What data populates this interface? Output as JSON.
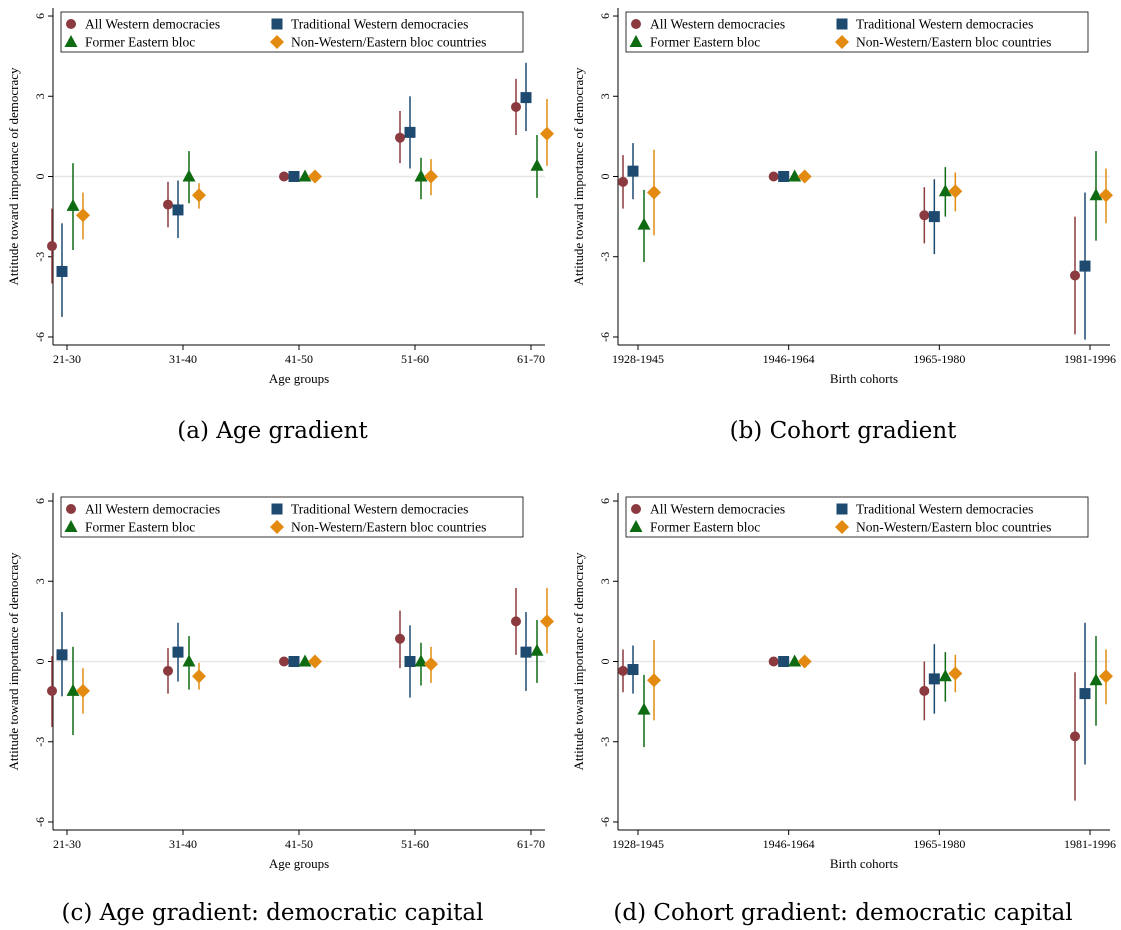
{
  "colors": {
    "all_western": "#8B3A3F",
    "traditional_western": "#1F4A70",
    "former_eastern": "#0F6B12",
    "non_western": "#E38A10",
    "zero_line": "#e6e6e6",
    "axis": "#000000"
  },
  "legend": {
    "all_western": "All Western democracies",
    "traditional_western": "Traditional Western democracies",
    "former_eastern": "Former Eastern bloc",
    "non_western": "Non-Western/Eastern bloc countries"
  },
  "captions": {
    "a": "(a) Age gradient",
    "b": "(b) Cohort gradient",
    "c": "(c) Age gradient: democratic capital",
    "d": "(d) Cohort gradient: democratic capital"
  },
  "chart_data": [
    {
      "type": "scatter",
      "ylabel": "Attitude toward importance of democracy",
      "xlabel": "Age groups",
      "categories": [
        "21-30",
        "31-40",
        "41-50",
        "51-60",
        "61-70"
      ],
      "yticks": [
        -6,
        -3,
        0,
        3,
        6
      ],
      "ylim": [
        -6.3,
        6.3
      ],
      "legend_position": "top-left",
      "series": [
        {
          "name": "All Western democracies",
          "marker": "circle",
          "values": [
            -2.6,
            -1.05,
            0,
            1.45,
            2.6
          ],
          "ci_low": [
            -4.0,
            -1.9,
            0,
            0.5,
            1.55
          ],
          "ci_high": [
            -1.2,
            -0.2,
            0,
            2.45,
            3.65
          ]
        },
        {
          "name": "Traditional Western democracies",
          "marker": "square",
          "values": [
            -3.55,
            -1.25,
            0,
            1.65,
            2.95
          ],
          "ci_low": [
            -5.25,
            -2.3,
            0,
            0.3,
            1.7
          ],
          "ci_high": [
            -1.75,
            -0.15,
            0,
            3.0,
            4.25
          ]
        },
        {
          "name": "Former Eastern bloc",
          "marker": "triangle",
          "values": [
            -1.1,
            0.0,
            0,
            0.0,
            0.4
          ],
          "ci_low": [
            -2.75,
            -1.0,
            0,
            -0.85,
            -0.8
          ],
          "ci_high": [
            0.5,
            0.95,
            0,
            0.7,
            1.55
          ]
        },
        {
          "name": "Non-Western/Eastern bloc countries",
          "marker": "diamond",
          "values": [
            -1.45,
            -0.7,
            0,
            0.0,
            1.6
          ],
          "ci_low": [
            -2.35,
            -1.2,
            0,
            -0.7,
            0.4
          ],
          "ci_high": [
            -0.6,
            -0.25,
            0,
            0.65,
            2.9
          ]
        }
      ]
    },
    {
      "type": "scatter",
      "ylabel": "Attitude toward importance of democracy",
      "xlabel": "Birth cohorts",
      "categories": [
        "1928-1945",
        "1946-1964",
        "1965-1980",
        "1981-1996"
      ],
      "yticks": [
        -6,
        -3,
        0,
        3,
        6
      ],
      "ylim": [
        -6.3,
        6.3
      ],
      "legend_position": "top-left",
      "series": [
        {
          "name": "All Western democracies",
          "marker": "circle",
          "values": [
            -0.2,
            0,
            -1.45,
            -3.7
          ],
          "ci_low": [
            -1.2,
            0,
            -2.5,
            -5.9
          ],
          "ci_high": [
            0.8,
            0,
            -0.4,
            -1.5
          ]
        },
        {
          "name": "Traditional Western democracies",
          "marker": "square",
          "values": [
            0.2,
            0,
            -1.5,
            -3.35
          ],
          "ci_low": [
            -0.85,
            0,
            -2.9,
            -6.1
          ],
          "ci_high": [
            1.25,
            0,
            -0.1,
            -0.6
          ]
        },
        {
          "name": "Former Eastern bloc",
          "marker": "triangle",
          "values": [
            -1.8,
            0,
            -0.55,
            -0.7
          ],
          "ci_low": [
            -3.2,
            0,
            -1.5,
            -2.4
          ],
          "ci_high": [
            -0.5,
            0,
            0.35,
            0.95
          ]
        },
        {
          "name": "Non-Western/Eastern bloc countries",
          "marker": "diamond",
          "values": [
            -0.6,
            0,
            -0.55,
            -0.7
          ],
          "ci_low": [
            -2.2,
            0,
            -1.3,
            -1.75
          ],
          "ci_high": [
            1.0,
            0,
            0.15,
            0.3
          ]
        }
      ]
    },
    {
      "type": "scatter",
      "ylabel": "Attitude toward importance of democracy",
      "xlabel": "Age groups",
      "categories": [
        "21-30",
        "31-40",
        "41-50",
        "51-60",
        "61-70"
      ],
      "yticks": [
        -6,
        -3,
        0,
        3,
        6
      ],
      "ylim": [
        -6.3,
        6.3
      ],
      "legend_position": "top-left",
      "series": [
        {
          "name": "All Western democracies",
          "marker": "circle",
          "values": [
            -1.1,
            -0.35,
            0,
            0.85,
            1.5
          ],
          "ci_low": [
            -2.45,
            -1.2,
            0,
            -0.25,
            0.25
          ],
          "ci_high": [
            0.2,
            0.5,
            0,
            1.9,
            2.75
          ]
        },
        {
          "name": "Traditional Western democracies",
          "marker": "square",
          "values": [
            0.25,
            0.35,
            0,
            0.0,
            0.35
          ],
          "ci_low": [
            -1.3,
            -0.75,
            0,
            -1.35,
            -1.1
          ],
          "ci_high": [
            1.85,
            1.45,
            0,
            1.35,
            1.85
          ]
        },
        {
          "name": "Former Eastern bloc",
          "marker": "triangle",
          "values": [
            -1.1,
            0.0,
            0,
            0.0,
            0.4
          ],
          "ci_low": [
            -2.75,
            -1.05,
            0,
            -0.9,
            -0.8
          ],
          "ci_high": [
            0.55,
            0.95,
            0,
            0.7,
            1.55
          ]
        },
        {
          "name": "Non-Western/Eastern bloc countries",
          "marker": "diamond",
          "values": [
            -1.1,
            -0.55,
            0,
            -0.1,
            1.5
          ],
          "ci_low": [
            -1.95,
            -1.05,
            0,
            -0.8,
            0.3
          ],
          "ci_high": [
            -0.25,
            -0.05,
            0,
            0.55,
            2.75
          ]
        }
      ]
    },
    {
      "type": "scatter",
      "ylabel": "Attitude toward importance of democracy",
      "xlabel": "Birth cohorts",
      "categories": [
        "1928-1945",
        "1946-1964",
        "1965-1980",
        "1981-1996"
      ],
      "yticks": [
        -6,
        -3,
        0,
        3,
        6
      ],
      "ylim": [
        -6.3,
        6.3
      ],
      "legend_position": "top-left",
      "series": [
        {
          "name": "All Western democracies",
          "marker": "circle",
          "values": [
            -0.35,
            0,
            -1.1,
            -2.8
          ],
          "ci_low": [
            -1.15,
            0,
            -2.2,
            -5.2
          ],
          "ci_high": [
            0.45,
            0,
            0.0,
            -0.4
          ]
        },
        {
          "name": "Traditional Western democracies",
          "marker": "square",
          "values": [
            -0.3,
            0,
            -0.65,
            -1.2
          ],
          "ci_low": [
            -1.2,
            0,
            -1.95,
            -3.85
          ],
          "ci_high": [
            0.6,
            0,
            0.65,
            1.45
          ]
        },
        {
          "name": "Former Eastern bloc",
          "marker": "triangle",
          "values": [
            -1.8,
            0,
            -0.55,
            -0.7
          ],
          "ci_low": [
            -3.2,
            0,
            -1.5,
            -2.4
          ],
          "ci_high": [
            -0.5,
            0,
            0.35,
            0.95
          ]
        },
        {
          "name": "Non-Western/Eastern bloc countries",
          "marker": "diamond",
          "values": [
            -0.7,
            0,
            -0.45,
            -0.55
          ],
          "ci_low": [
            -2.2,
            0,
            -1.15,
            -1.6
          ],
          "ci_high": [
            0.8,
            0,
            0.25,
            0.45
          ]
        }
      ]
    }
  ]
}
